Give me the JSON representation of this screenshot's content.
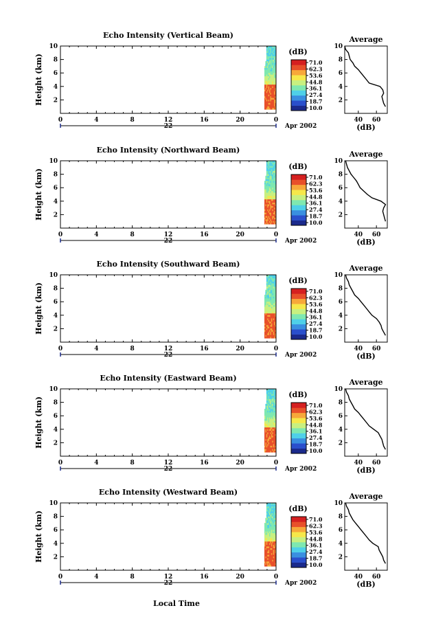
{
  "figure": {
    "xlabel": "Local Time",
    "date_label": "Apr 2002",
    "day_label": "22",
    "colorbar_unit": "(dB)",
    "colorbar_ticks": [
      "71.0",
      "62.3",
      "53.6",
      "44.8",
      "36.1",
      "27.4",
      "18.7",
      "10.0"
    ],
    "colorbar_colors": [
      "#1b2a8c",
      "#2a4fcc",
      "#3a8fe0",
      "#4fd0e8",
      "#7fe8b0",
      "#c8f080",
      "#f6e84a",
      "#f7a83a",
      "#e8502a",
      "#d52020"
    ],
    "average_title": "Average",
    "average_xlabel": "(dB)"
  },
  "chart_data": [
    {
      "type": "heatmap",
      "title": "Echo Intensity (Vertical Beam)",
      "ylabel": "Height (km)",
      "xlabel": "Local Time",
      "x_ticks": [
        "0",
        "4",
        "8",
        "12",
        "16",
        "20",
        "0"
      ],
      "xlim": [
        0,
        24
      ],
      "ylim": [
        0,
        10
      ],
      "y_ticks": [
        "2",
        "4",
        "6",
        "8",
        "10"
      ],
      "data_window_hours": [
        22.7,
        24
      ],
      "colorbar_range_db": [
        10.0,
        71.0
      ],
      "profile": {
        "title": "Average",
        "xlabel": "(dB)",
        "x_ticks": [
          "40",
          "60"
        ],
        "y_ticks": [
          "2",
          "4",
          "6",
          "8",
          "10"
        ],
        "height_km": [
          1.0,
          1.5,
          2.0,
          2.5,
          3.0,
          3.5,
          4.0,
          4.5,
          5.0,
          5.5,
          6.0,
          6.5,
          7.0,
          7.5,
          8.0,
          8.5,
          9.0,
          9.5,
          10.0
        ],
        "db": [
          70,
          68,
          67,
          66,
          68,
          67,
          64,
          52,
          49,
          46,
          43,
          40,
          36,
          34,
          31,
          30,
          29,
          26,
          25
        ]
      }
    },
    {
      "type": "heatmap",
      "title": "Echo Intensity (Northward Beam)",
      "ylabel": "Height (km)",
      "xlabel": "Local Time",
      "x_ticks": [
        "0",
        "4",
        "8",
        "12",
        "16",
        "20",
        "0"
      ],
      "xlim": [
        0,
        24
      ],
      "ylim": [
        0,
        10
      ],
      "y_ticks": [
        "2",
        "4",
        "6",
        "8",
        "10"
      ],
      "data_window_hours": [
        22.7,
        24
      ],
      "colorbar_range_db": [
        10.0,
        71.0
      ],
      "profile": {
        "title": "Average",
        "xlabel": "(dB)",
        "x_ticks": [
          "40",
          "60"
        ],
        "y_ticks": [
          "2",
          "4",
          "6",
          "8",
          "10"
        ],
        "height_km": [
          1.0,
          1.5,
          2.0,
          2.5,
          3.0,
          3.5,
          4.0,
          4.5,
          5.0,
          5.5,
          6.0,
          6.5,
          7.0,
          7.5,
          8.0,
          8.5,
          9.0,
          9.5,
          10.0
        ],
        "db": [
          70,
          69,
          68,
          67,
          68,
          70,
          65,
          55,
          50,
          46,
          42,
          40,
          38,
          35,
          32,
          30,
          28,
          27,
          26
        ]
      }
    },
    {
      "type": "heatmap",
      "title": "Echo Intensity (Southward Beam)",
      "ylabel": "Height (km)",
      "xlabel": "Local Time",
      "x_ticks": [
        "0",
        "4",
        "8",
        "12",
        "16",
        "20",
        "0"
      ],
      "xlim": [
        0,
        24
      ],
      "ylim": [
        0,
        10
      ],
      "y_ticks": [
        "2",
        "4",
        "6",
        "8",
        "10"
      ],
      "data_window_hours": [
        22.7,
        24
      ],
      "colorbar_range_db": [
        10.0,
        71.0
      ],
      "profile": {
        "title": "Average",
        "xlabel": "(dB)",
        "x_ticks": [
          "40",
          "60"
        ],
        "y_ticks": [
          "2",
          "4",
          "6",
          "8",
          "10"
        ],
        "height_km": [
          1.0,
          1.5,
          2.0,
          2.5,
          3.0,
          3.5,
          4.0,
          4.5,
          5.0,
          5.5,
          6.0,
          6.5,
          7.0,
          7.5,
          8.0,
          8.5,
          9.0,
          9.5,
          10.0
        ],
        "db": [
          70,
          68,
          66,
          65,
          63,
          60,
          55,
          52,
          49,
          46,
          43,
          40,
          36,
          34,
          32,
          30,
          29,
          27,
          26
        ]
      }
    },
    {
      "type": "heatmap",
      "title": "Echo Intensity (Eastward Beam)",
      "ylabel": "Height (km)",
      "xlabel": "Local Time",
      "x_ticks": [
        "0",
        "4",
        "8",
        "12",
        "16",
        "20",
        "0"
      ],
      "xlim": [
        0,
        24
      ],
      "ylim": [
        0,
        10
      ],
      "y_ticks": [
        "2",
        "4",
        "6",
        "8",
        "10"
      ],
      "data_window_hours": [
        22.7,
        24
      ],
      "colorbar_range_db": [
        10.0,
        71.0
      ],
      "profile": {
        "title": "Average",
        "xlabel": "(dB)",
        "x_ticks": [
          "40",
          "60"
        ],
        "y_ticks": [
          "2",
          "4",
          "6",
          "8",
          "10"
        ],
        "height_km": [
          1.0,
          1.5,
          2.0,
          2.5,
          3.0,
          3.5,
          4.0,
          4.5,
          5.0,
          5.5,
          6.0,
          6.5,
          7.0,
          7.5,
          8.0,
          8.5,
          9.0,
          9.5,
          10.0
        ],
        "db": [
          70,
          68,
          67,
          66,
          64,
          62,
          57,
          52,
          49,
          46,
          43,
          40,
          36,
          34,
          32,
          30,
          29,
          27,
          26
        ]
      }
    },
    {
      "type": "heatmap",
      "title": "Echo Intensity (Westward Beam)",
      "ylabel": "Height (km)",
      "xlabel": "Local Time",
      "x_ticks": [
        "0",
        "4",
        "8",
        "12",
        "16",
        "20",
        "0"
      ],
      "xlim": [
        0,
        24
      ],
      "ylim": [
        0,
        10
      ],
      "y_ticks": [
        "2",
        "4",
        "6",
        "8",
        "10"
      ],
      "data_window_hours": [
        22.7,
        24
      ],
      "colorbar_range_db": [
        10.0,
        71.0
      ],
      "profile": {
        "title": "Average",
        "xlabel": "(dB)",
        "x_ticks": [
          "40",
          "60"
        ],
        "y_ticks": [
          "2",
          "4",
          "6",
          "8",
          "10"
        ],
        "height_km": [
          1.0,
          1.5,
          2.0,
          2.5,
          3.0,
          3.5,
          4.0,
          4.5,
          5.0,
          5.5,
          6.0,
          6.5,
          7.0,
          7.5,
          8.0,
          8.5,
          9.0,
          9.5,
          10.0
        ],
        "db": [
          70,
          68,
          67,
          65,
          63,
          62,
          56,
          52,
          49,
          46,
          43,
          40,
          37,
          34,
          32,
          30,
          29,
          27,
          26
        ]
      }
    }
  ]
}
